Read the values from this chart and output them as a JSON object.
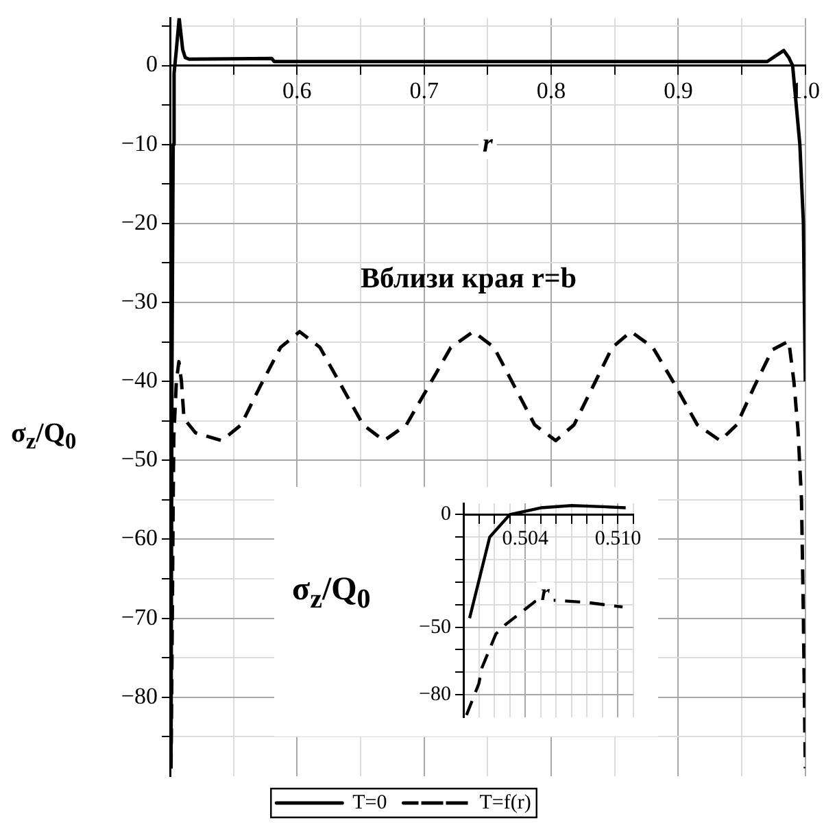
{
  "chart_data": [
    {
      "type": "line",
      "ylabel": "σ$_{z}$/Q$_{0}$",
      "xlabel": "r",
      "annotations": [
        "Вблизи края r=b"
      ],
      "xlim": [
        0.5,
        1.0
      ],
      "ylim": [
        -90,
        6
      ],
      "xticks": [
        {
          "value": 0.5,
          "label": null
        },
        {
          "value": 0.55,
          "label": null
        },
        0.6,
        {
          "value": 0.65,
          "label": null
        },
        0.7,
        {
          "value": 0.75,
          "label": null
        },
        0.8,
        {
          "value": 0.85,
          "label": null
        },
        0.9,
        {
          "value": 0.95,
          "label": null
        },
        {
          "value": 1.0,
          "label": "1.0"
        }
      ],
      "yticks": [
        {
          "value": 5,
          "label": null
        },
        0,
        {
          "value": -5,
          "label": null
        },
        -10,
        {
          "value": -15,
          "label": null
        },
        -20,
        {
          "value": -25,
          "label": null
        },
        -30,
        {
          "value": -35,
          "label": null
        },
        -40,
        {
          "value": -45,
          "label": null
        },
        -50,
        {
          "value": -55,
          "label": null
        },
        -60,
        {
          "value": -65,
          "label": null
        },
        -70,
        {
          "value": -75,
          "label": null
        },
        -80,
        {
          "value": -85,
          "label": null
        }
      ],
      "grid": true,
      "legend": "bottom",
      "series": [
        {
          "name": "T=0",
          "color": "#000000",
          "line_style": "solid",
          "x": [
            0.5008,
            0.5015,
            0.5025,
            0.5032,
            0.505,
            0.5072,
            0.51,
            0.512,
            0.515,
            0.58,
            0.582,
            0.97,
            0.983,
            0.987,
            0.99,
            0.9957,
            0.9985,
            1.0
          ],
          "values": [
            -89,
            -40,
            -10,
            -1,
            2,
            6,
            2,
            1,
            0.8,
            0.9,
            0.5,
            0.5,
            1.9,
            1,
            0,
            -10,
            -20,
            -40
          ]
        },
        {
          "name": "T=f(r)",
          "color": "#000000",
          "line_style": "dashed",
          "x": [
            0.5008,
            0.5018,
            0.5025,
            0.503,
            0.505,
            0.507,
            0.509,
            0.511,
            0.52,
            0.5407,
            0.556,
            0.571,
            0.587,
            0.602,
            0.618,
            0.635,
            0.652,
            0.6685,
            0.686,
            0.7036,
            0.721,
            0.7387,
            0.755,
            0.771,
            0.787,
            0.8035,
            0.818,
            0.833,
            0.848,
            0.8628,
            0.88,
            0.898,
            0.915,
            0.933,
            0.946,
            0.96,
            0.974,
            0.987,
            0.991,
            0.9943,
            0.997,
            0.9985,
            1.0
          ],
          "values": [
            -89,
            -70,
            -55,
            -47,
            -40,
            -37.5,
            -40,
            -44.7,
            -46.5,
            -47.5,
            -45.5,
            -40.6,
            -35.7,
            -33.7,
            -35.7,
            -40.6,
            -45.5,
            -47.5,
            -45.5,
            -40.6,
            -35.7,
            -33.7,
            -35.7,
            -40.6,
            -45.5,
            -47.5,
            -45.5,
            -40.6,
            -35.7,
            -33.7,
            -35.7,
            -40.6,
            -45.5,
            -47.5,
            -45.5,
            -40.6,
            -36,
            -34.9,
            -40,
            -46.3,
            -55,
            -70,
            -89
          ]
        }
      ]
    },
    {
      "type": "line",
      "ylabel": "σ$_{z}$/Q$_{0}$",
      "xlabel": "r",
      "xlim": [
        0.5,
        0.511
      ],
      "ylim": [
        -90,
        5
      ],
      "xticks": [
        {
          "value": 0.5,
          "label": null
        },
        {
          "value": 0.501,
          "label": null
        },
        {
          "value": 0.502,
          "label": null
        },
        {
          "value": 0.503,
          "label": null
        },
        0.504,
        {
          "value": 0.505,
          "label": null
        },
        {
          "value": 0.506,
          "label": null
        },
        {
          "value": 0.507,
          "label": null
        },
        {
          "value": 0.508,
          "label": null
        },
        {
          "value": 0.509,
          "label": null
        },
        {
          "value": 0.51,
          "label": "0.510"
        },
        {
          "value": 0.511,
          "label": null
        }
      ],
      "yticks": [
        0,
        {
          "value": -10,
          "label": null
        },
        {
          "value": -20,
          "label": null
        },
        {
          "value": -30,
          "label": null
        },
        {
          "value": -40,
          "label": null
        },
        -50,
        {
          "value": -60,
          "label": null
        },
        {
          "value": -70,
          "label": null
        },
        -80
      ],
      "grid": true,
      "series": [
        {
          "color": "#000000",
          "line_style": "solid",
          "x": [
            0.5004,
            0.5017,
            0.503,
            0.505,
            0.507,
            0.509,
            0.5105
          ],
          "values": [
            -46,
            -10,
            0,
            3,
            4,
            3.5,
            3
          ]
        },
        {
          "color": "#000000",
          "line_style": "dashed",
          "x": [
            0.5002,
            0.501,
            0.5012,
            0.5021,
            0.5027,
            0.5053,
            0.5058,
            0.508,
            0.5091,
            0.5103
          ],
          "values": [
            -89,
            -75,
            -68,
            -53,
            -49,
            -35,
            -38,
            -39,
            -40,
            -41
          ]
        }
      ]
    }
  ]
}
